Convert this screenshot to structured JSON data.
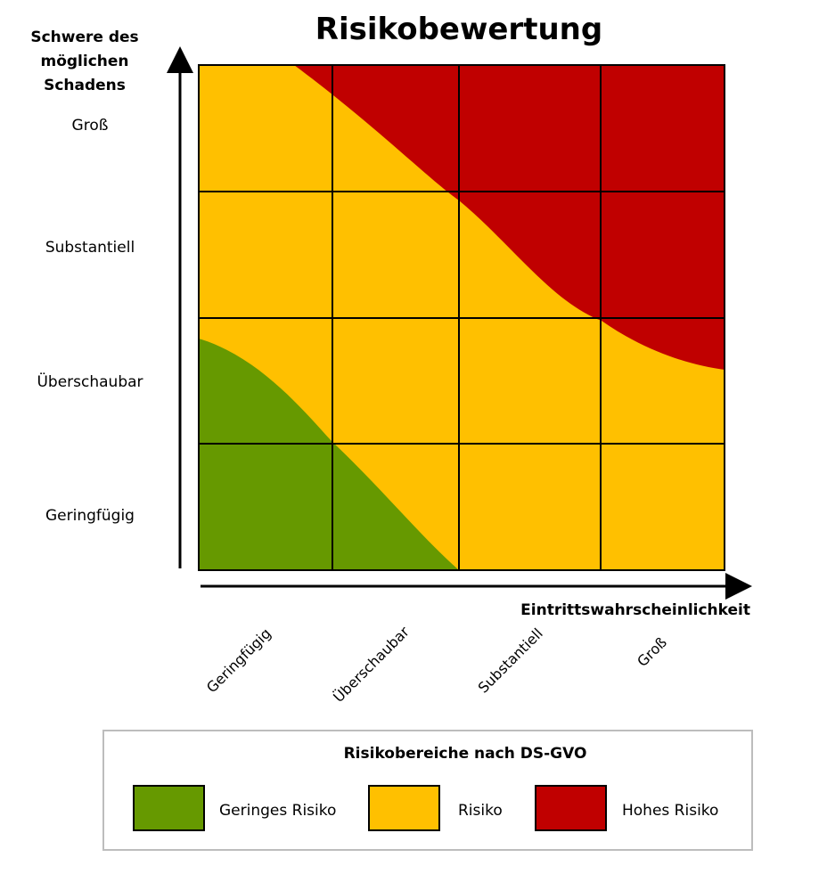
{
  "title": "Risikobewertung",
  "y_axis": {
    "label_lines": [
      "Schwere des",
      "möglichen",
      "Schadens"
    ],
    "ticks": [
      "Geringfügig",
      "Überschaubar",
      "Substantiell",
      "Groß"
    ]
  },
  "x_axis": {
    "label": "Eintrittswahrscheinlichkeit",
    "ticks": [
      "Geringfügig",
      "Überschaubar",
      "Substantiell",
      "Groß"
    ]
  },
  "legend": {
    "title": "Risikobereiche nach DS-GVO",
    "items": [
      {
        "label": "Geringes Risiko",
        "color": "#669900"
      },
      {
        "label": "Risiko",
        "color": "#FFC000"
      },
      {
        "label": "Hohes Risiko",
        "color": "#C00000"
      }
    ]
  },
  "colors": {
    "low": "#669900",
    "medium": "#FFC000",
    "high": "#C00000",
    "grid": "#000000"
  }
}
